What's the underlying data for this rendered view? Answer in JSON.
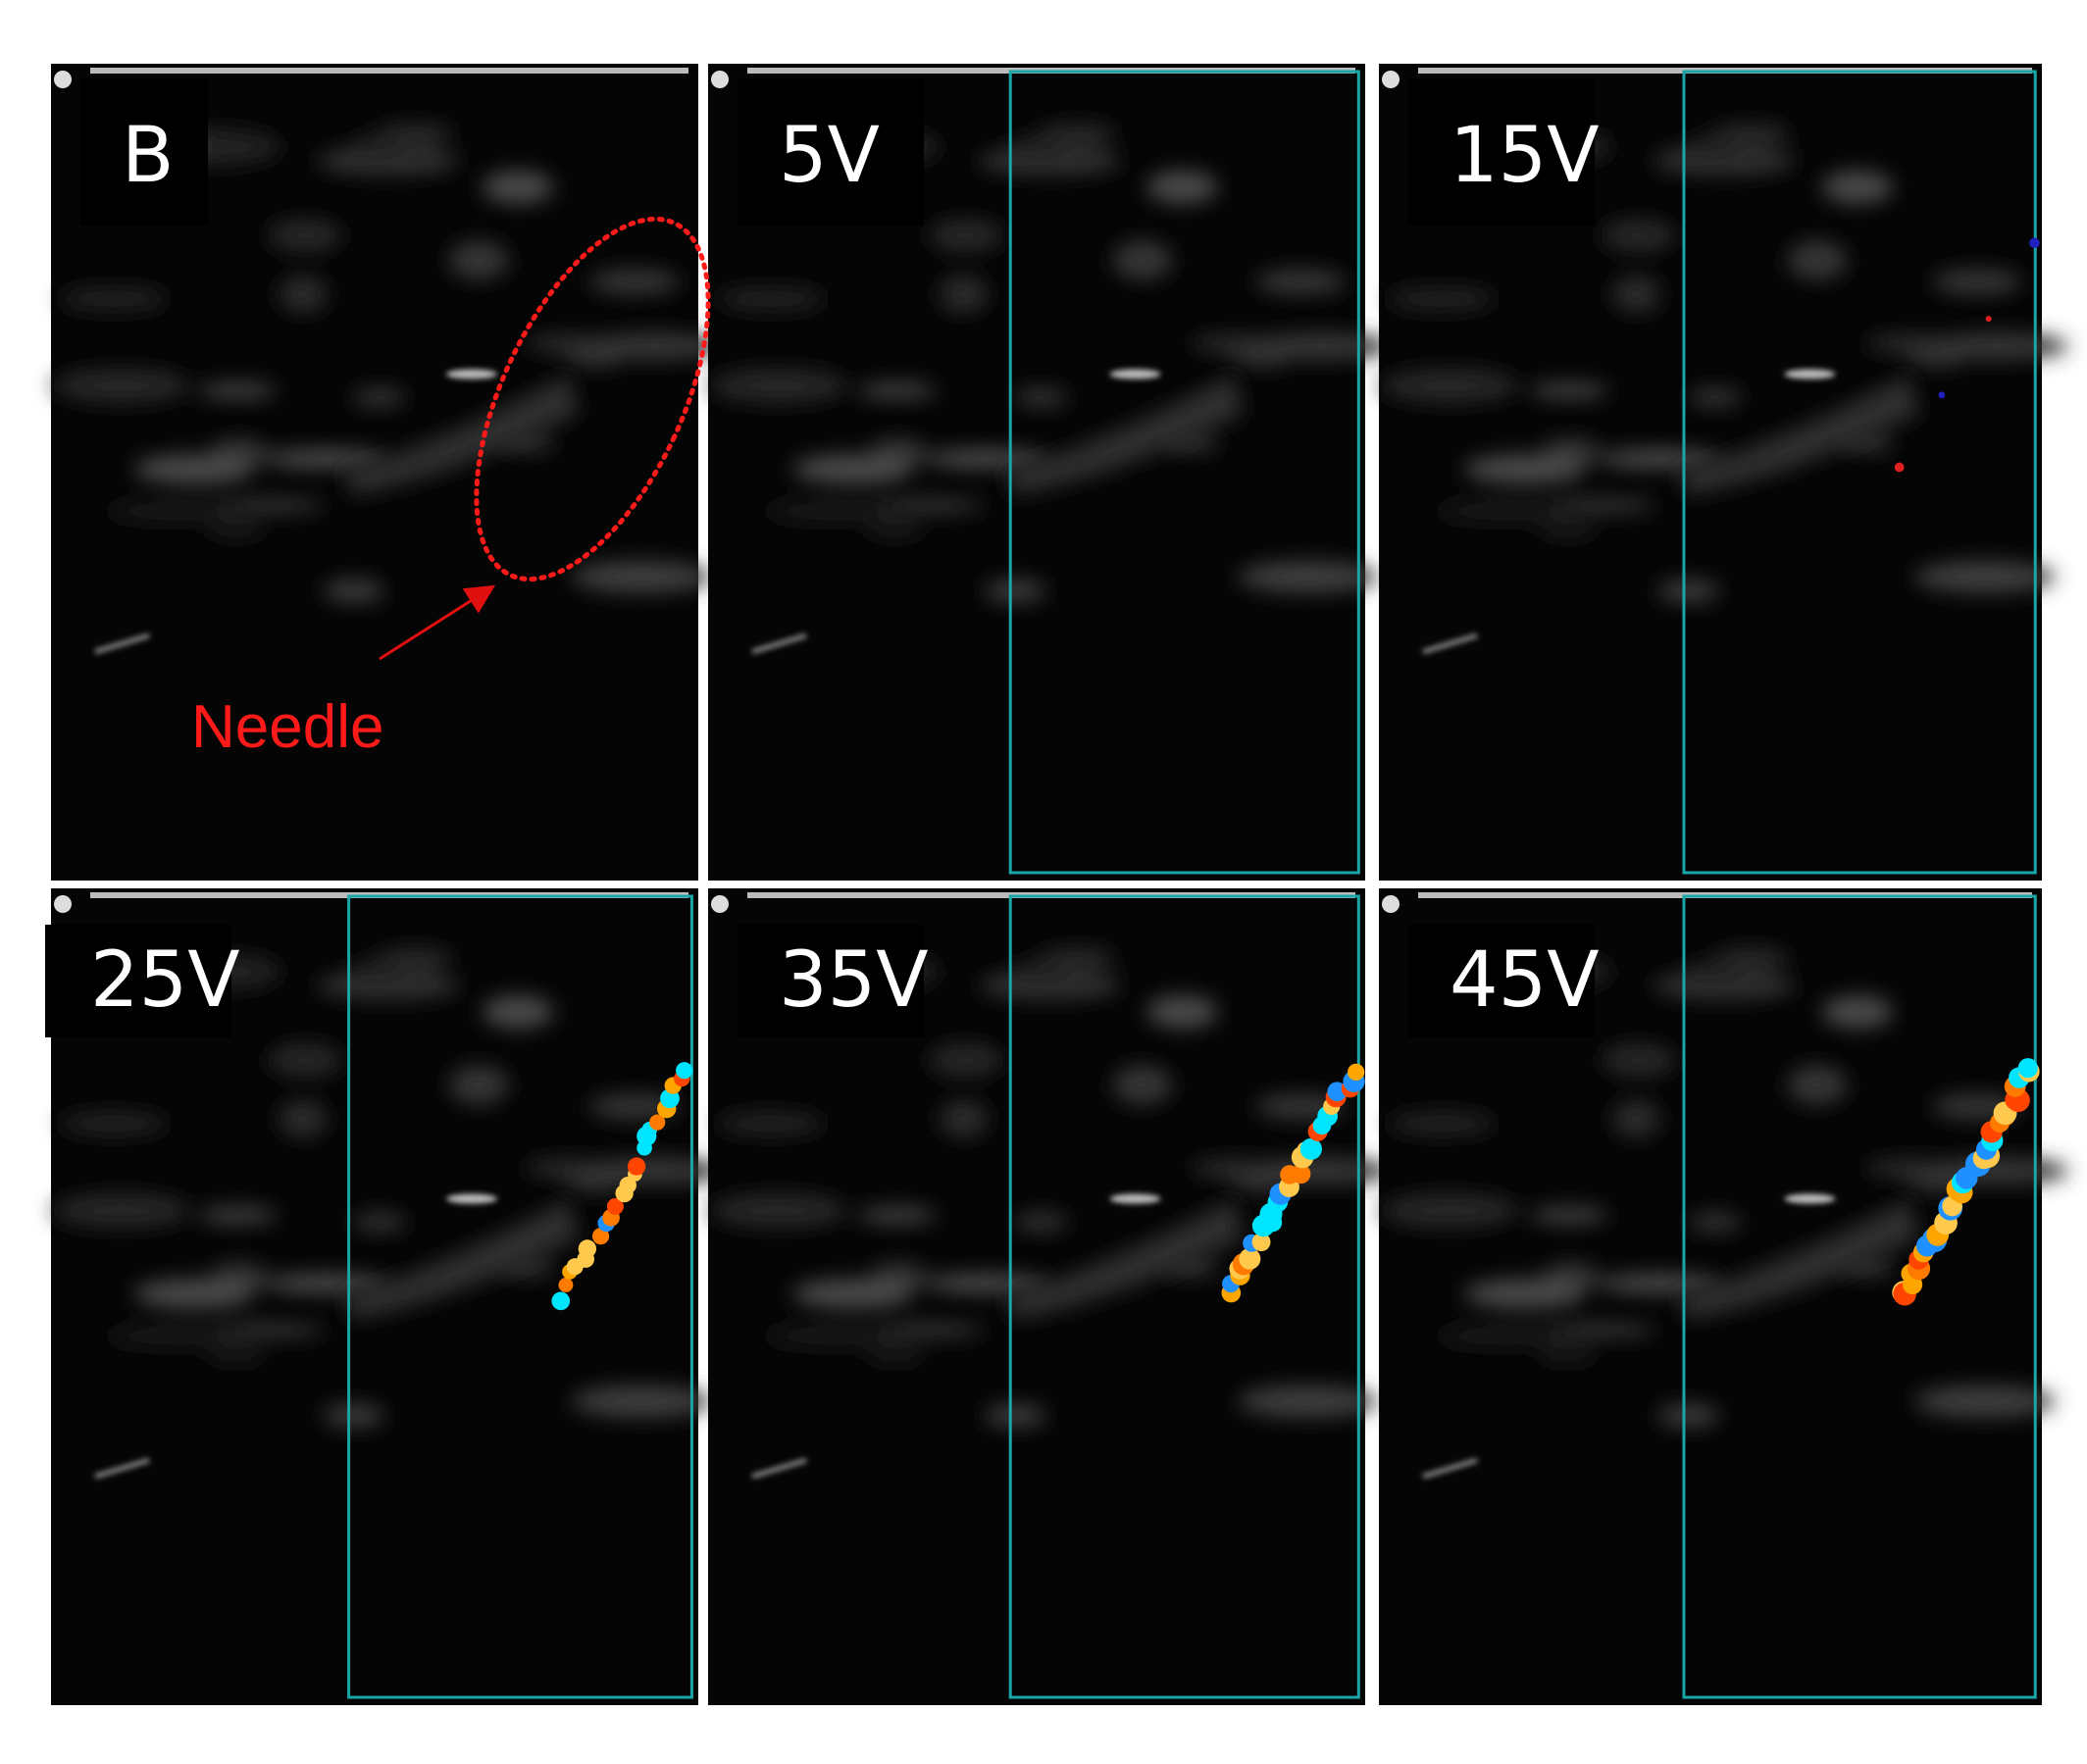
{
  "panels": [
    {
      "label": "B"
    },
    {
      "label": "5V"
    },
    {
      "label": "15V"
    },
    {
      "label": "25V"
    },
    {
      "label": "35V"
    },
    {
      "label": "45V"
    }
  ],
  "annotation": "Needle"
}
